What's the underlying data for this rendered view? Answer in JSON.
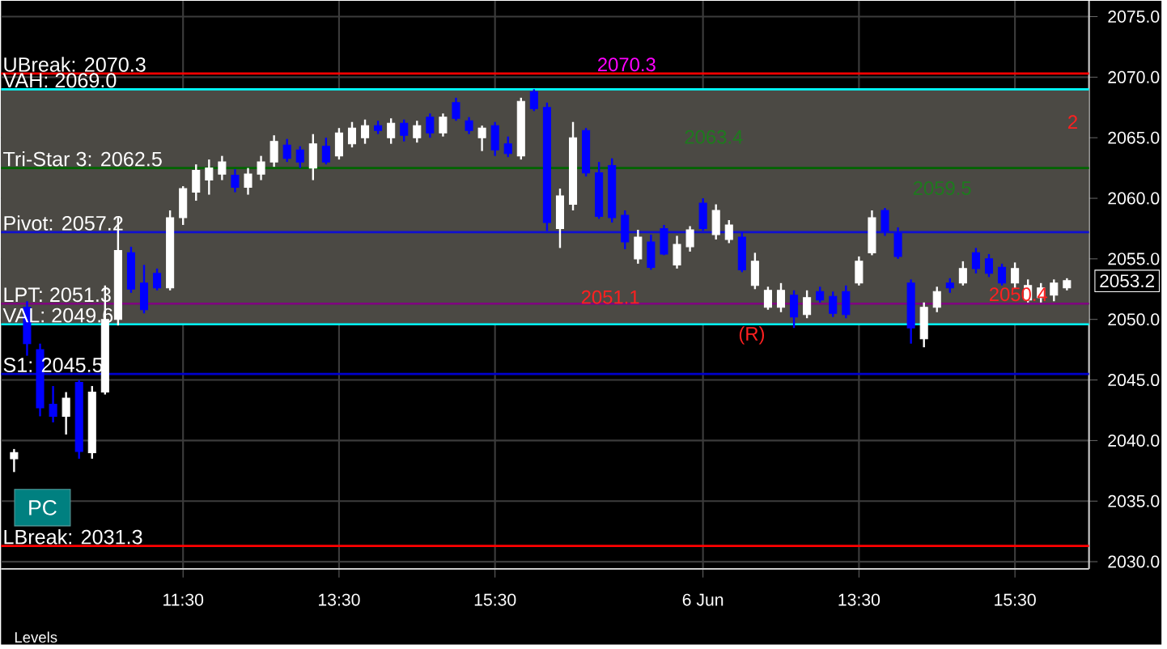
{
  "chart_data": {
    "type": "candlestick",
    "categories": [
      null,
      null,
      null,
      null,
      null,
      null,
      null,
      null,
      null,
      null,
      null,
      null,
      null,
      "11:30",
      null,
      null,
      null,
      null,
      null,
      null,
      null,
      null,
      null,
      null,
      null,
      "13:30",
      null,
      null,
      null,
      null,
      null,
      null,
      null,
      null,
      null,
      null,
      null,
      "15:30",
      null,
      null,
      null,
      null,
      null,
      null,
      null,
      null,
      null,
      null,
      null,
      null,
      null,
      null,
      null,
      "6 Jun",
      null,
      null,
      null,
      null,
      null,
      null,
      null,
      null,
      null,
      null,
      null,
      "13:30",
      null,
      null,
      null,
      null,
      null,
      null,
      null,
      null,
      null,
      null,
      null,
      "15:30",
      null,
      null,
      null,
      null
    ],
    "ohlc": [
      [
        2038.5,
        2039.3,
        2037.4,
        2039
      ],
      [
        2051,
        2051.5,
        2047,
        2048
      ],
      [
        2047.5,
        2048,
        2042,
        2042.7
      ],
      [
        2043,
        2044.5,
        2041.5,
        2042
      ],
      [
        2042,
        2044,
        2040.5,
        2043.5
      ],
      [
        2044.8,
        2045,
        2038.5,
        2039.1
      ],
      [
        2039,
        2044.5,
        2038.5,
        2044
      ],
      [
        2044,
        2052.8,
        2043.8,
        2050
      ],
      [
        2050,
        2058.4,
        2049.5,
        2055.7
      ],
      [
        2055.5,
        2056,
        2052.2,
        2052.5
      ],
      [
        2053,
        2054.5,
        2050.5,
        2050.8
      ],
      [
        2053.8,
        2054.2,
        2052.4,
        2052.6
      ],
      [
        2052.6,
        2059,
        2052.4,
        2058.4
      ],
      [
        2058.4,
        2061,
        2057.8,
        2060.8
      ],
      [
        2060.5,
        2062.8,
        2059.8,
        2062.3
      ],
      [
        2061.5,
        2063.2,
        2060.3,
        2062.5
      ],
      [
        2062,
        2063.5,
        2061.5,
        2063
      ],
      [
        2061.9,
        2062.4,
        2060.5,
        2060.9
      ],
      [
        2060.9,
        2062.5,
        2060.3,
        2062
      ],
      [
        2062,
        2063.5,
        2061.5,
        2063
      ],
      [
        2063,
        2065.2,
        2062.6,
        2064.7
      ],
      [
        2064.4,
        2064.9,
        2063,
        2063.3
      ],
      [
        2064,
        2064.3,
        2062.5,
        2063
      ],
      [
        2062.5,
        2065.3,
        2061.5,
        2064.5
      ],
      [
        2064.3,
        2065,
        2062.8,
        2063
      ],
      [
        2063.5,
        2065.8,
        2063.2,
        2065.4
      ],
      [
        2064.5,
        2066.3,
        2064.2,
        2065.8
      ],
      [
        2065,
        2066.5,
        2064.5,
        2066
      ],
      [
        2066,
        2066.4,
        2065.3,
        2065.6
      ],
      [
        2065,
        2066.6,
        2064.5,
        2066.2
      ],
      [
        2066.2,
        2066.5,
        2064.7,
        2065.2
      ],
      [
        2065,
        2066.4,
        2064.6,
        2066
      ],
      [
        2066.7,
        2067,
        2065,
        2065.4
      ],
      [
        2065.4,
        2067,
        2065.1,
        2066.7
      ],
      [
        2067.9,
        2068.3,
        2066.4,
        2066.6
      ],
      [
        2066.4,
        2066.7,
        2065.3,
        2065.6
      ],
      [
        2065,
        2066,
        2063.9,
        2065.8
      ],
      [
        2066,
        2066.3,
        2063.5,
        2064
      ],
      [
        2064.5,
        2065.1,
        2063.4,
        2063.7
      ],
      [
        2063.5,
        2068.3,
        2063.2,
        2068
      ],
      [
        2068.8,
        2069,
        2067.2,
        2067.4
      ],
      [
        2067.5,
        2067.9,
        2057.3,
        2058
      ],
      [
        2057.5,
        2060.8,
        2055.9,
        2060.2
      ],
      [
        2059.5,
        2066.3,
        2059,
        2065
      ],
      [
        2065.6,
        2065.8,
        2061.8,
        2062.1
      ],
      [
        2062.1,
        2063,
        2058.3,
        2058.5
      ],
      [
        2062.7,
        2063.3,
        2058,
        2058.4
      ],
      [
        2058.6,
        2059,
        2055.8,
        2056.4
      ],
      [
        2055,
        2057.4,
        2054.6,
        2056.8
      ],
      [
        2056.4,
        2057,
        2054.1,
        2054.3
      ],
      [
        2057.5,
        2057.8,
        2055.3,
        2055.4
      ],
      [
        2054.5,
        2056.9,
        2054.2,
        2056.2
      ],
      [
        2056,
        2057.7,
        2055.6,
        2057.4
      ],
      [
        2059.6,
        2060,
        2057.3,
        2057.5
      ],
      [
        2057,
        2059.5,
        2056.6,
        2059
      ],
      [
        2056.6,
        2058.2,
        2056.3,
        2057.8
      ],
      [
        2056.8,
        2057.2,
        2053.9,
        2054.1
      ],
      [
        2052.8,
        2055.5,
        2052.5,
        2054.8
      ],
      [
        2051,
        2052.7,
        2050.8,
        2052.4
      ],
      [
        2051,
        2053,
        2050.6,
        2052.4
      ],
      [
        2052,
        2052.4,
        2049.3,
        2050.2
      ],
      [
        2050.4,
        2052.4,
        2050.1,
        2051.8
      ],
      [
        2052.3,
        2052.7,
        2051.4,
        2051.6
      ],
      [
        2051.9,
        2052.3,
        2050.2,
        2050.5
      ],
      [
        2052.3,
        2052.8,
        2050.1,
        2050.4
      ],
      [
        2053,
        2055.2,
        2052.8,
        2054.8
      ],
      [
        2055.5,
        2059,
        2055.3,
        2058.4
      ],
      [
        2059,
        2059.2,
        2056.9,
        2057.3
      ],
      [
        2057.1,
        2057.6,
        2055,
        2055.2
      ],
      [
        2053,
        2053.3,
        2048,
        2049.3
      ],
      [
        2048.4,
        2051.4,
        2047.7,
        2051
      ],
      [
        2051,
        2052.7,
        2050.6,
        2052.3
      ],
      [
        2053,
        2053.4,
        2052.2,
        2052.6
      ],
      [
        2053,
        2054.8,
        2052.8,
        2054.2
      ],
      [
        2055.5,
        2055.9,
        2053.8,
        2054.2
      ],
      [
        2055,
        2055.4,
        2053.5,
        2053.8
      ],
      [
        2054.3,
        2054.6,
        2052.8,
        2053
      ],
      [
        2053,
        2054.7,
        2052.6,
        2054.2
      ],
      [
        2051.6,
        2053.3,
        2051.4,
        2052.8
      ],
      [
        2051.8,
        2053,
        2051.4,
        2052.6
      ],
      [
        2052,
        2053.3,
        2051.5,
        2053
      ],
      [
        2052.6,
        2053.4,
        2052.4,
        2053.2
      ]
    ],
    "colors": [
      "#ffffff",
      "#0000ff",
      "#0000ff",
      "#0000ff",
      "#ffffff",
      "#0000ff",
      "#ffffff",
      "#ffffff",
      "#ffffff",
      "#0000ff",
      "#0000ff",
      "#0000ff",
      "#ffffff",
      "#ffffff",
      "#ffffff",
      "#ffffff",
      "#ffffff",
      "#0000ff",
      "#ffffff",
      "#ffffff",
      "#ffffff",
      "#0000ff",
      "#0000ff",
      "#ffffff",
      "#0000ff",
      "#ffffff",
      "#ffffff",
      "#ffffff",
      "#0000ff",
      "#ffffff",
      "#0000ff",
      "#ffffff",
      "#0000ff",
      "#ffffff",
      "#0000ff",
      "#0000ff",
      "#ffffff",
      "#0000ff",
      "#0000ff",
      "#ffffff",
      "#0000ff",
      "#0000ff",
      "#ffffff",
      "#ffffff",
      "#0000ff",
      "#0000ff",
      "#0000ff",
      "#0000ff",
      "#ffffff",
      "#0000ff",
      "#0000ff",
      "#ffffff",
      "#ffffff",
      "#0000ff",
      "#ffffff",
      "#ffffff",
      "#0000ff",
      "#ffffff",
      "#ffffff",
      "#ffffff",
      "#0000ff",
      "#ffffff",
      "#0000ff",
      "#0000ff",
      "#0000ff",
      "#ffffff",
      "#ffffff",
      "#0000ff",
      "#0000ff",
      "#0000ff",
      "#ffffff",
      "#ffffff",
      "#0000ff",
      "#ffffff",
      "#0000ff",
      "#0000ff",
      "#0000ff",
      "#ffffff",
      "#ffffff",
      "#ffffff",
      "#ffffff",
      "#ffffff"
    ],
    "ylim": [
      2029.4,
      2076.3
    ],
    "yticks": [
      {
        "value": 2030,
        "label": "2030.0"
      },
      {
        "value": 2035,
        "label": "2035.0"
      },
      {
        "value": 2040,
        "label": "2040.0"
      },
      {
        "value": 2045,
        "label": "2045.0"
      },
      {
        "value": 2050,
        "label": "2050.0"
      },
      {
        "value": 2055,
        "label": "2055.0"
      },
      {
        "value": 2060,
        "label": "2060.0"
      },
      {
        "value": 2065,
        "label": "2065.0"
      },
      {
        "value": 2070,
        "label": "2070.0"
      },
      {
        "value": 2075,
        "label": "2075.0"
      }
    ],
    "grid": true,
    "bands": [
      {
        "axis": "y",
        "from": 2049.6,
        "to": 2069.0,
        "color": "#4b4944"
      }
    ],
    "ref_lines": [
      {
        "axis": "y",
        "value": 2070.3,
        "label": "UBreak: 2070.3",
        "color": "#ff0000"
      },
      {
        "axis": "y",
        "value": 2069.0,
        "label": "VAH: 2069.0",
        "color": "#00ffff"
      },
      {
        "axis": "y",
        "value": 2062.5,
        "label": "Tri-Star 3: 2062.5",
        "color": "#006400"
      },
      {
        "axis": "y",
        "value": 2057.2,
        "label": "Pivot: 2057.2",
        "color": "#1010d0"
      },
      {
        "axis": "y",
        "value": 2051.3,
        "label": "LPT: 2051.3",
        "color": "#800080"
      },
      {
        "axis": "y",
        "value": 2049.6,
        "label": "VAL: 2049.6",
        "color": "#00ffff"
      },
      {
        "axis": "y",
        "value": 2045.5,
        "label": "S1: 2045.5",
        "color": "#0000cd"
      },
      {
        "axis": "y",
        "value": 2031.3,
        "label": "LBreak: 2031.3",
        "color": "#ff0000"
      }
    ],
    "annotations": [
      {
        "text": "2070.3",
        "y": 2070.3
      },
      "2",
      "2063.4",
      "2059.5",
      {
        "text": "2051.1",
        "y": 2051.1
      },
      "2050.4",
      {
        "text": "(R)",
        "y": 2049.6
      },
      "2053.2",
      "PC",
      "Levels"
    ]
  }
}
